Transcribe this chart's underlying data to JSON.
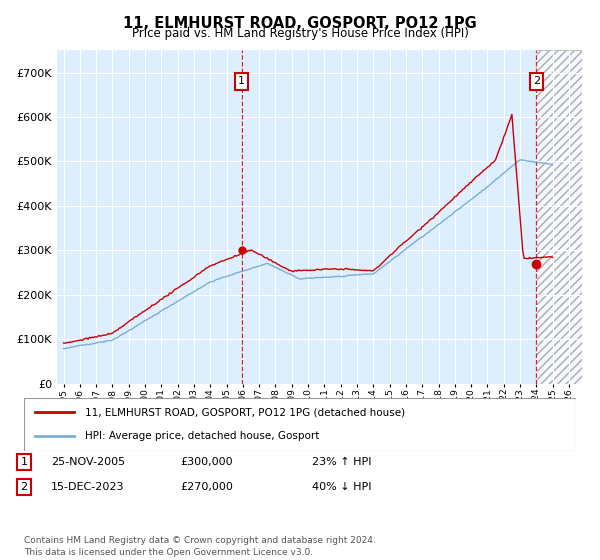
{
  "title": "11, ELMHURST ROAD, GOSPORT, PO12 1PG",
  "subtitle": "Price paid vs. HM Land Registry's House Price Index (HPI)",
  "legend_line1": "11, ELMHURST ROAD, GOSPORT, PO12 1PG (detached house)",
  "legend_line2": "HPI: Average price, detached house, Gosport",
  "footnote": "Contains HM Land Registry data © Crown copyright and database right 2024.\nThis data is licensed under the Open Government Licence v3.0.",
  "annotation1": {
    "label": "1",
    "date": "25-NOV-2005",
    "price": "£300,000",
    "hpi": "23% ↑ HPI"
  },
  "annotation2": {
    "label": "2",
    "date": "15-DEC-2023",
    "price": "£270,000",
    "hpi": "40% ↓ HPI"
  },
  "hpi_color": "#7aafd4",
  "price_color": "#cc0000",
  "bg_color": "#ddeeff",
  "ylim": [
    0,
    750000
  ],
  "t1_year": 2005.917,
  "t1_price": 300000,
  "t2_year": 2024.0,
  "t2_price": 270000,
  "hatch_start": 2024.0,
  "xlim_min": 1994.6,
  "xlim_max": 2026.8
}
